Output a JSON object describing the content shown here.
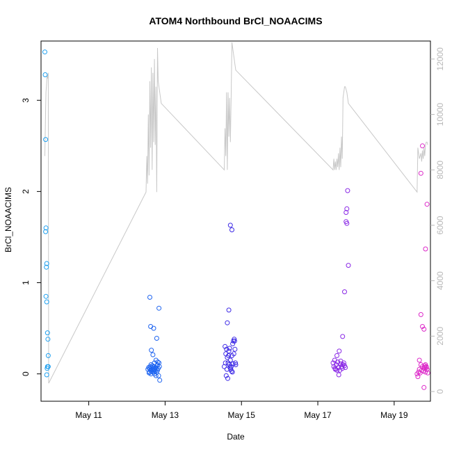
{
  "chart_data": {
    "type": "scatter",
    "title": "ATOM4 Northbound BrCl_NOAACIMS",
    "xlabel": "Date",
    "ylabel": "BrCl_NOAACIMS",
    "x_is_date": true,
    "xlim": [
      9.75,
      19.95
    ],
    "ylim": [
      -0.3,
      3.65
    ],
    "x_ticks": [
      11,
      13,
      15,
      17,
      19
    ],
    "x_tick_labels": [
      "May 11",
      "May 13",
      "May 15",
      "May 17",
      "May 19"
    ],
    "y_ticks": [
      0,
      1,
      2,
      3
    ],
    "y_tick_labels": [
      "0",
      "1",
      "2",
      "3"
    ],
    "y2_ticks": [
      0,
      2000,
      4000,
      6000,
      8000,
      10000,
      12000
    ],
    "y2_tick_labels": [
      "0",
      "2000",
      "4000",
      "6000",
      "8000",
      "10000",
      "12000"
    ],
    "y2lim": [
      -350,
      12650
    ],
    "grid": false,
    "legend": "none",
    "colors": {
      "flight1": "#1ea0f0",
      "flight2": "#1e64f0",
      "flight3": "#3c28e6",
      "flight4": "#8a28e6",
      "flight5": "#dc28c8",
      "altitude_line": "#c8c8c8"
    },
    "altitude_series": {
      "name": "",
      "x": [
        9.85,
        9.87,
        9.88,
        9.89,
        9.9,
        9.91,
        9.92,
        9.93,
        9.94,
        9.95,
        12.5,
        12.52,
        12.54,
        12.56,
        12.58,
        12.6,
        12.62,
        12.64,
        12.66,
        12.68,
        12.7,
        12.72,
        12.74,
        12.76,
        12.78,
        12.8,
        12.82,
        12.84,
        12.86,
        12.88,
        12.9,
        14.55,
        14.57,
        14.59,
        14.61,
        14.63,
        14.65,
        14.67,
        14.69,
        14.71,
        14.73,
        14.75,
        14.77,
        14.79,
        14.81,
        14.83,
        14.85,
        17.4,
        17.42,
        17.44,
        17.46,
        17.48,
        17.5,
        17.52,
        17.54,
        17.56,
        17.58,
        17.6,
        17.62,
        17.64,
        17.66,
        17.68,
        17.7,
        17.72,
        17.74,
        17.76,
        17.78,
        17.8,
        19.6,
        19.62,
        19.64,
        19.66,
        19.68,
        19.7,
        19.72,
        19.74,
        19.76,
        19.78,
        19.8,
        19.82,
        19.84,
        19.86,
        19.88
      ],
      "y": [
        8500,
        10200,
        10800,
        11000,
        11200,
        11400,
        11300,
        11400,
        11500,
        300,
        7200,
        8500,
        7500,
        10000,
        7800,
        11200,
        8800,
        11700,
        8000,
        11500,
        9000,
        12000,
        8900,
        11000,
        7200,
        12400,
        11200,
        11000,
        10800,
        10600,
        10400,
        8000,
        9500,
        8500,
        10800,
        8000,
        10800,
        9200,
        10600,
        9000,
        10600,
        12600,
        12400,
        12200,
        12000,
        11800,
        11600,
        8000,
        8400,
        8000,
        8300,
        8000,
        8400,
        8100,
        8600,
        8000,
        8800,
        8100,
        9200,
        8400,
        10600,
        10800,
        11000,
        11000,
        10900,
        10800,
        10600,
        10400,
        7200,
        8800,
        8600,
        8400,
        8500,
        8600,
        8300,
        8700,
        8400,
        8800,
        8500,
        8900,
        9000,
        9000,
        8900
      ]
    },
    "series": [
      {
        "name": "",
        "color_key": "flight1",
        "x": [
          9.85,
          9.86,
          9.87,
          9.88,
          9.87,
          9.9,
          9.89,
          9.88,
          9.9,
          9.92,
          9.93,
          9.94,
          9.91,
          9.9,
          9.92,
          9.94
        ],
        "y": [
          3.53,
          3.28,
          2.57,
          1.6,
          1.56,
          1.21,
          1.17,
          0.85,
          0.79,
          0.45,
          0.38,
          0.2,
          0.06,
          -0.01,
          0.08,
          0.08
        ]
      },
      {
        "name": "",
        "color_key": "flight2",
        "x": [
          12.55,
          12.57,
          12.59,
          12.6,
          12.61,
          12.62,
          12.63,
          12.64,
          12.65,
          12.66,
          12.67,
          12.68,
          12.69,
          12.7,
          12.71,
          12.72,
          12.73,
          12.74,
          12.75,
          12.76,
          12.77,
          12.78,
          12.79,
          12.8,
          12.81,
          12.82,
          12.83,
          12.84,
          12.85,
          12.86,
          12.6,
          12.62,
          12.7,
          12.78,
          12.84,
          12.64,
          12.68,
          12.72,
          12.76,
          12.66,
          12.58,
          12.74,
          12.8,
          12.63
        ],
        "y": [
          0.05,
          0.07,
          0.02,
          0.06,
          0.08,
          0.04,
          0.1,
          0.03,
          0.07,
          0.05,
          0.09,
          0.02,
          0.06,
          0.08,
          0.04,
          0.12,
          0.05,
          0.03,
          0.07,
          0.15,
          0.06,
          0.02,
          0.09,
          0.04,
          0.13,
          0.06,
          -0.02,
          0.12,
          0.08,
          -0.07,
          0.84,
          0.52,
          0.5,
          0.39,
          0.72,
          0.26,
          0.21,
          0.0,
          -0.02,
          0.05,
          0.01,
          0.03,
          0.1,
          0.0
        ]
      },
      {
        "name": "",
        "color_key": "flight3",
        "x": [
          14.55,
          14.57,
          14.59,
          14.61,
          14.63,
          14.65,
          14.67,
          14.69,
          14.71,
          14.73,
          14.75,
          14.77,
          14.79,
          14.81,
          14.83,
          14.85,
          14.6,
          14.64,
          14.68,
          14.72,
          14.76,
          14.8,
          14.84,
          14.58,
          14.62,
          14.66,
          14.7,
          14.74,
          14.78,
          14.82,
          14.63,
          14.67,
          14.71,
          14.75
        ],
        "y": [
          0.08,
          0.3,
          0.22,
          0.27,
          0.18,
          0.12,
          0.25,
          0.28,
          0.15,
          0.08,
          0.2,
          0.33,
          0.36,
          0.38,
          0.27,
          0.1,
          -0.02,
          -0.05,
          0.1,
          0.05,
          0.02,
          0.22,
          0.12,
          0.12,
          0.05,
          0.2,
          0.07,
          0.03,
          0.11,
          0.36,
          0.56,
          0.7,
          1.63,
          1.58
        ]
      },
      {
        "name": "",
        "color_key": "flight4",
        "x": [
          17.4,
          17.42,
          17.44,
          17.46,
          17.48,
          17.5,
          17.52,
          17.54,
          17.56,
          17.58,
          17.6,
          17.62,
          17.64,
          17.66,
          17.68,
          17.7,
          17.72,
          17.74,
          17.76,
          17.45,
          17.5,
          17.55,
          17.6,
          17.65,
          17.7,
          17.74,
          17.76,
          17.78,
          17.8,
          17.62,
          17.66
        ],
        "y": [
          0.12,
          0.08,
          0.15,
          0.05,
          0.1,
          0.2,
          0.13,
          0.07,
          0.25,
          0.04,
          0.11,
          0.08,
          0.06,
          0.1,
          0.12,
          0.09,
          0.07,
          1.77,
          1.65,
          0.06,
          0.04,
          -0.01,
          0.14,
          0.41,
          0.9,
          1.67,
          1.81,
          2.01,
          1.19,
          0.08,
          0.1
        ]
      },
      {
        "name": "",
        "color_key": "flight5",
        "x": [
          19.6,
          19.62,
          19.64,
          19.66,
          19.68,
          19.7,
          19.72,
          19.74,
          19.76,
          19.78,
          19.8,
          19.82,
          19.84,
          19.86,
          19.88,
          19.66,
          19.7,
          19.74,
          19.78,
          19.82,
          19.86,
          19.7,
          19.74,
          19.78,
          19.8,
          19.82,
          19.84,
          19.86
        ],
        "y": [
          0.0,
          -0.03,
          0.02,
          0.05,
          0.01,
          0.1,
          0.04,
          0.08,
          0.03,
          0.06,
          0.09,
          0.02,
          0.07,
          0.05,
          0.01,
          0.15,
          0.65,
          0.52,
          0.49,
          1.37,
          1.86,
          2.2,
          2.5,
          -0.15,
          0.07,
          0.1,
          0.08,
          0.05
        ]
      }
    ]
  }
}
